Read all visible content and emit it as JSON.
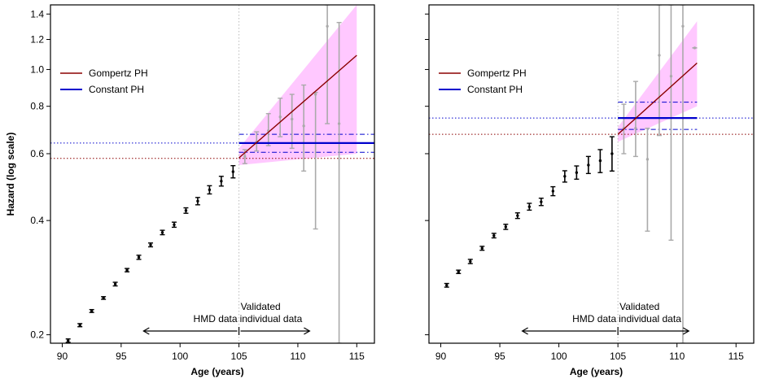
{
  "colors": {
    "gompertz": "#8b0000",
    "constant": "#0000cd",
    "band": "#ffb6ff",
    "points_hmd": "#000000",
    "points_validated": "#aaaaaa",
    "divider": "#bbbbbb"
  },
  "chart_data": [
    {
      "type": "scatter",
      "panel": "left",
      "xlabel": "Age (years)",
      "ylabel": "Hazard (log scale)",
      "y_scale": "log",
      "xlim": [
        89,
        116.5
      ],
      "ylim": [
        0.19,
        1.48
      ],
      "x_ticks": [
        "90",
        "95",
        "100",
        "105",
        "110",
        "115"
      ],
      "y_ticks": [
        "0.2",
        "0.4",
        "0.6",
        "0.8",
        "1.0",
        "1.2",
        "1.4"
      ],
      "legend": {
        "placement": "top-left",
        "entries": [
          "Gompertz PH",
          "Constant PH"
        ]
      },
      "annotations": {
        "left_arrow": "HMD data",
        "right_arrow_line1": "Validated",
        "right_arrow_line2": "individual data"
      },
      "divider_x": 105,
      "hmd_points": [
        {
          "x": 90.5,
          "y": 0.193,
          "lo": 0.191,
          "hi": 0.195
        },
        {
          "x": 91.5,
          "y": 0.212,
          "lo": 0.21,
          "hi": 0.214
        },
        {
          "x": 92.5,
          "y": 0.231,
          "lo": 0.229,
          "hi": 0.233
        },
        {
          "x": 93.5,
          "y": 0.25,
          "lo": 0.248,
          "hi": 0.252
        },
        {
          "x": 94.5,
          "y": 0.272,
          "lo": 0.269,
          "hi": 0.275
        },
        {
          "x": 95.5,
          "y": 0.296,
          "lo": 0.293,
          "hi": 0.299
        },
        {
          "x": 96.5,
          "y": 0.32,
          "lo": 0.316,
          "hi": 0.324
        },
        {
          "x": 97.5,
          "y": 0.345,
          "lo": 0.341,
          "hi": 0.349
        },
        {
          "x": 98.5,
          "y": 0.372,
          "lo": 0.367,
          "hi": 0.377
        },
        {
          "x": 99.5,
          "y": 0.39,
          "lo": 0.384,
          "hi": 0.396
        },
        {
          "x": 100.5,
          "y": 0.425,
          "lo": 0.418,
          "hi": 0.432
        },
        {
          "x": 101.5,
          "y": 0.45,
          "lo": 0.44,
          "hi": 0.46
        },
        {
          "x": 102.5,
          "y": 0.482,
          "lo": 0.47,
          "hi": 0.494
        },
        {
          "x": 103.5,
          "y": 0.508,
          "lo": 0.493,
          "hi": 0.523
        },
        {
          "x": 104.5,
          "y": 0.538,
          "lo": 0.518,
          "hi": 0.558
        }
      ],
      "validated_points": [
        {
          "x": 105.5,
          "y": 0.59,
          "lo": 0.565,
          "hi": 0.615
        },
        {
          "x": 106.5,
          "y": 0.645,
          "lo": 0.61,
          "hi": 0.685
        },
        {
          "x": 107.5,
          "y": 0.69,
          "lo": 0.63,
          "hi": 0.765
        },
        {
          "x": 108.5,
          "y": 0.75,
          "lo": 0.665,
          "hi": 0.84
        },
        {
          "x": 109.5,
          "y": 0.74,
          "lo": 0.62,
          "hi": 0.86
        },
        {
          "x": 110.5,
          "y": 0.71,
          "lo": 0.54,
          "hi": 0.91
        },
        {
          "x": 111.5,
          "y": 0.86,
          "lo": 0.38,
          "hi": 0.87
        },
        {
          "x": 112.5,
          "y": 1.3,
          "lo": 0.72,
          "hi": 1.48
        },
        {
          "x": 113.5,
          "y": 0.72,
          "lo": 0.19,
          "hi": 1.33
        }
      ],
      "gompertz_line": {
        "x": [
          105,
          115
        ],
        "y": [
          0.585,
          1.09
        ]
      },
      "gompertz_band": {
        "x": [
          105,
          115
        ],
        "lower": [
          0.56,
          0.6
        ],
        "upper": [
          0.62,
          1.48
        ]
      },
      "constant_line": {
        "x": [
          105,
          116.5
        ],
        "y": 0.64,
        "lower": 0.605,
        "upper": 0.675
      },
      "ref_blue": 0.64,
      "ref_red": 0.583
    },
    {
      "type": "scatter",
      "panel": "right",
      "xlabel": "Age (years)",
      "y_scale": "log",
      "xlim": [
        89,
        116.5
      ],
      "ylim": [
        0.19,
        1.48
      ],
      "x_ticks": [
        "90",
        "95",
        "100",
        "105",
        "110",
        "115"
      ],
      "legend": {
        "placement": "top-left",
        "entries": [
          "Gompertz PH",
          "Constant PH"
        ]
      },
      "annotations": {
        "left_arrow": "HMD data",
        "right_arrow_line1": "Validated",
        "right_arrow_line2": "individual data"
      },
      "divider_x": 105,
      "hmd_points": [
        {
          "x": 90.5,
          "y": 0.27,
          "lo": 0.267,
          "hi": 0.273
        },
        {
          "x": 91.5,
          "y": 0.293,
          "lo": 0.29,
          "hi": 0.296
        },
        {
          "x": 92.5,
          "y": 0.312,
          "lo": 0.308,
          "hi": 0.316
        },
        {
          "x": 93.5,
          "y": 0.338,
          "lo": 0.334,
          "hi": 0.342
        },
        {
          "x": 94.5,
          "y": 0.365,
          "lo": 0.36,
          "hi": 0.37
        },
        {
          "x": 95.5,
          "y": 0.385,
          "lo": 0.379,
          "hi": 0.391
        },
        {
          "x": 96.5,
          "y": 0.412,
          "lo": 0.405,
          "hi": 0.419
        },
        {
          "x": 97.5,
          "y": 0.435,
          "lo": 0.426,
          "hi": 0.444
        },
        {
          "x": 98.5,
          "y": 0.448,
          "lo": 0.438,
          "hi": 0.458
        },
        {
          "x": 99.5,
          "y": 0.478,
          "lo": 0.465,
          "hi": 0.491
        },
        {
          "x": 100.5,
          "y": 0.523,
          "lo": 0.505,
          "hi": 0.541
        },
        {
          "x": 101.5,
          "y": 0.535,
          "lo": 0.514,
          "hi": 0.557
        },
        {
          "x": 102.5,
          "y": 0.56,
          "lo": 0.532,
          "hi": 0.59
        },
        {
          "x": 103.5,
          "y": 0.575,
          "lo": 0.535,
          "hi": 0.615
        },
        {
          "x": 104.5,
          "y": 0.6,
          "lo": 0.54,
          "hi": 0.665
        }
      ],
      "validated_points": [
        {
          "x": 105.5,
          "y": 0.7,
          "lo": 0.6,
          "hi": 0.81
        },
        {
          "x": 106.5,
          "y": 0.7,
          "lo": 0.59,
          "hi": 0.93
        },
        {
          "x": 107.5,
          "y": 0.58,
          "lo": 0.375,
          "hi": 0.7
        },
        {
          "x": 108.5,
          "y": 1.09,
          "lo": 0.67,
          "hi": 1.48
        },
        {
          "x": 109.5,
          "y": 0.96,
          "lo": 0.355,
          "hi": 1.48
        },
        {
          "x": 110.5,
          "y": 1.3,
          "lo": 0.19,
          "hi": 1.48
        },
        {
          "x": 111.5,
          "y": 1.14,
          "lo": 1.14,
          "hi": 1.14
        }
      ],
      "gompertz_line": {
        "x": [
          105,
          111.7
        ],
        "y": [
          0.675,
          1.04
        ]
      },
      "gompertz_band": {
        "x": [
          105,
          111.7
        ],
        "lower": [
          0.645,
          0.8
        ],
        "upper": [
          0.705,
          1.34
        ]
      },
      "constant_line": {
        "x": [
          105,
          111.7
        ],
        "y": 0.745,
        "lower": 0.695,
        "upper": 0.82
      },
      "ref_blue": 0.745,
      "ref_red": 0.675
    }
  ]
}
